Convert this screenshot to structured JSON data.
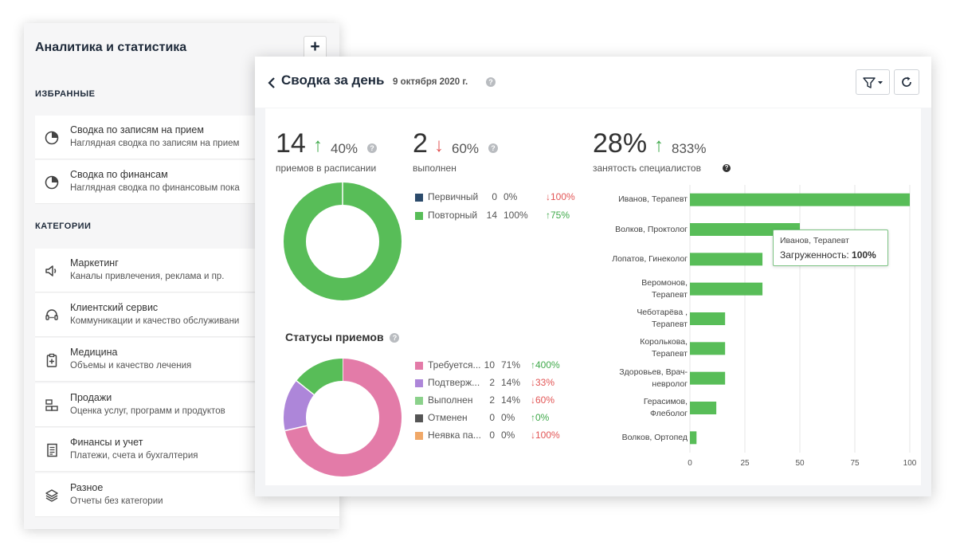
{
  "sidebar": {
    "title": "Аналитика и статистика",
    "add_label": "+",
    "favorites_label": "ИЗБРАННЫЕ",
    "categories_label": "КАТЕГОРИИ",
    "favorites": [
      {
        "title": "Сводка по записям на прием",
        "subtitle": "Наглядная сводка по записям на прием",
        "icon": "pie-chart-icon"
      },
      {
        "title": "Сводка по финансам",
        "subtitle": "Наглядная сводка по финансовым пока",
        "icon": "pie-chart-icon"
      }
    ],
    "categories": [
      {
        "title": "Маркетинг",
        "subtitle": "Каналы привлечения, реклама и пр.",
        "icon": "megaphone-icon"
      },
      {
        "title": "Клиентский сервис",
        "subtitle": "Коммуникации и качество обслуживани",
        "icon": "headset-icon"
      },
      {
        "title": "Медицина",
        "subtitle": "Объемы и качество лечения",
        "icon": "clipboard-plus-icon"
      },
      {
        "title": "Продажи",
        "subtitle": "Оценка услуг, программ и продуктов",
        "icon": "boxes-icon"
      },
      {
        "title": "Финансы и учет",
        "subtitle": "Платежи, счета и бухгалтерия",
        "icon": "document-icon"
      },
      {
        "title": "Разное",
        "subtitle": "Отчеты без категории",
        "icon": "layers-icon"
      }
    ]
  },
  "summary": {
    "back_icon": "chevron-left-icon",
    "title": "Сводка за день",
    "date": "9 октября 2020 г.",
    "help": "?",
    "filter_icon": "filter-icon",
    "refresh_icon": "refresh-icon"
  },
  "kpis": {
    "appointments": {
      "value": "14",
      "arrow": "↑",
      "change": "40%",
      "label": "приемов в расписании"
    },
    "completed": {
      "value": "2",
      "arrow": "↓",
      "change": "60%",
      "label": "выполнен"
    },
    "occupancy": {
      "value": "28%",
      "arrow": "↑",
      "change": "833%",
      "label": "занятость специалистов"
    }
  },
  "types_legend": [
    {
      "name": "Первичный",
      "count": "0",
      "pct": "0%",
      "change": "↓100%",
      "color": "#2b4a6b",
      "dir": "down"
    },
    {
      "name": "Повторный",
      "count": "14",
      "pct": "100%",
      "change": "↑75%",
      "color": "#58bd58",
      "dir": "up"
    }
  ],
  "statuses": {
    "title": "Статусы приемов",
    "legend": [
      {
        "name": "Требуется...",
        "count": "10",
        "pct": "71%",
        "change": "↑400%",
        "color": "#e37ba8",
        "dir": "up"
      },
      {
        "name": "Подтверж...",
        "count": "2",
        "pct": "14%",
        "change": "↓33%",
        "color": "#ad86d9",
        "dir": "down"
      },
      {
        "name": "Выполнен",
        "count": "2",
        "pct": "14%",
        "change": "↓60%",
        "color": "#8bd18b",
        "dir": "down"
      },
      {
        "name": "Отменен",
        "count": "0",
        "pct": "0%",
        "change": "↑0%",
        "color": "#555555",
        "dir": "up"
      },
      {
        "name": "Неявка па...",
        "count": "0",
        "pct": "0%",
        "change": "↓100%",
        "color": "#f0a868",
        "dir": "down"
      }
    ]
  },
  "chart_data": [
    {
      "type": "pie",
      "variant": "donut",
      "categories": [
        "Первичный",
        "Повторный"
      ],
      "values": [
        0,
        14
      ],
      "colors": [
        "#2b4a6b",
        "#58bd58"
      ]
    },
    {
      "type": "pie",
      "variant": "donut",
      "categories": [
        "Требуется...",
        "Подтверж...",
        "Выполнен",
        "Отменен",
        "Неявка па..."
      ],
      "values": [
        10,
        2,
        2,
        0,
        0
      ],
      "colors": [
        "#e37ba8",
        "#ad86d9",
        "#58bd58",
        "#555555",
        "#f0a868"
      ]
    },
    {
      "type": "bar",
      "orientation": "horizontal",
      "categories": [
        [
          "Иванов, Терапевт"
        ],
        [
          "Волков, Проктолог"
        ],
        [
          "Лопатов, Гинеколог"
        ],
        [
          "Веромонов,",
          "Терапевт"
        ],
        [
          "Чеботарёва ,",
          "Терапевт"
        ],
        [
          "Королькова,",
          "Терапевт"
        ],
        [
          "Здоровьев, Врач-",
          "невролог"
        ],
        [
          "Герасимов,",
          "Флеболог"
        ],
        [
          "Волков, Ортопед"
        ]
      ],
      "values": [
        100,
        50,
        33,
        33,
        16,
        16,
        16,
        12,
        3
      ],
      "xlim": [
        0,
        100
      ],
      "xticks": [
        "0",
        "25",
        "50",
        "75",
        "100"
      ],
      "grid": true,
      "color": "#58bd58",
      "tooltip": {
        "name": "Иванов, Терапевт",
        "label": "Загруженность:",
        "value": "100%"
      }
    }
  ]
}
